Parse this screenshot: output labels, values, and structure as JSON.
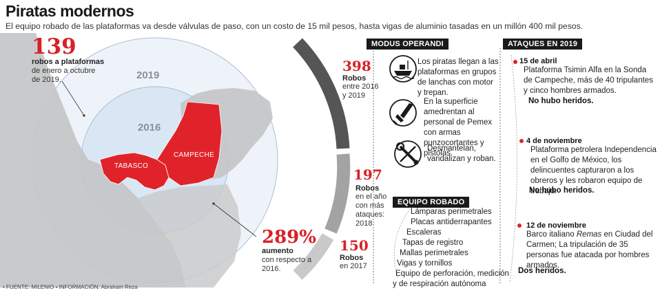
{
  "header": {
    "title": "Piratas modernos",
    "subtitle": "El equipo robado de las plataformas va desde válvulas de paso, con un costo de 15 mil pesos, hasta vigas de aluminio tasadas en un millón 400 mil pesos."
  },
  "map": {
    "stat": {
      "value": "139",
      "label_bold": "robos a plataformas",
      "label_rest": "de enero a octubre de 2019."
    },
    "ring_labels": [
      "2019",
      "2016"
    ],
    "state_labels": [
      "TABASCO",
      "CAMPECHE"
    ],
    "colors": {
      "highlight": "#e0232a",
      "land": "#c4c5c7",
      "ring_outer": "#eef3f9",
      "ring_inner": "#d9e7f4"
    }
  },
  "growth": {
    "value": "289%",
    "label_bold": "aumento",
    "label_rest": "con respecto a 2016."
  },
  "robberies": [
    {
      "value": "398",
      "label_bold": "Robos",
      "label_rest": "entre 2016 y 2019"
    },
    {
      "value": "197",
      "label_bold": "Robos",
      "label_rest": "en el año con más ataques: 2018"
    },
    {
      "value": "150",
      "label_bold": "Robos",
      "label_rest": "en 2017"
    }
  ],
  "modus": {
    "heading": "MODUS OPERANDI",
    "items": [
      {
        "icon": "boat-icon",
        "text": "Los piratas llegan a las plataformas en grupos de lanchas con motor y trepan."
      },
      {
        "icon": "knife-icon",
        "text": "En la superficie amedrentan al personal de Pemex con armas punzocortantes y pistolas."
      },
      {
        "icon": "wrench-icon",
        "text": "Desmantelan, vandalizan y roban."
      }
    ]
  },
  "equipment": {
    "heading": "EQUIPO ROBADO",
    "items": [
      "Lámparas perimetrales",
      "Placas antiderrapantes",
      "Escaleras",
      "Tapas de registro",
      "Mallas perimetrales",
      "Vigas y tornillos",
      "Equipo de perforación, medición",
      "y de respiración autónoma"
    ]
  },
  "attacks": {
    "heading": "ATAQUES EN 2019",
    "items": [
      {
        "date": "15 de abril",
        "desc": "Plataforma Tsimin Alfa en la Sonda de Campeche, más de 40 tripulantes y cinco hombres armados.",
        "result": "No hubo heridos."
      },
      {
        "date": "4 de noviembre",
        "desc": "Plataforma petrolera Independencia en el Golfo de México, los delincuentes capturaron a los obreros y les robaron equipo de trabajo.",
        "result": "No hubo heridos."
      },
      {
        "date": "12 de noviembre",
        "desc_pre": "Barco italiano ",
        "desc_em": "Remas",
        "desc_post": " en Ciudad del Carmen; La tripulación de 35 personas fue atacada por hombres armados.",
        "result": "Dos heridos."
      }
    ]
  },
  "footer": {
    "source": "• FUENTE: MILENIO • INFORMACIÓN: Abraham Reza"
  }
}
